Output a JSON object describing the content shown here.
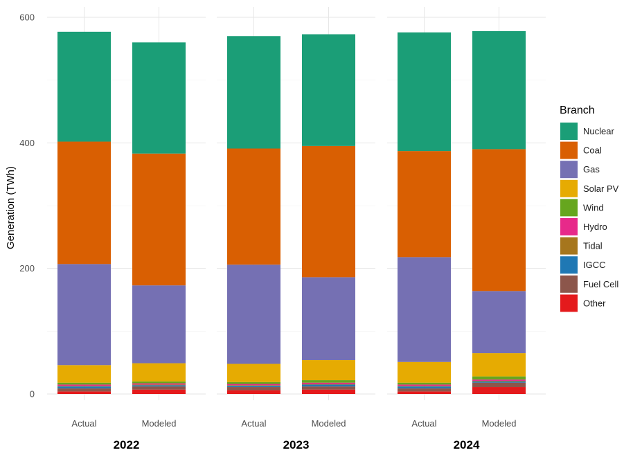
{
  "chart_data": {
    "type": "bar",
    "stacked": true,
    "ylabel": "Generation (TWh)",
    "ylim": [
      0,
      610
    ],
    "yticks": [
      0,
      200,
      400,
      600
    ],
    "grid": true,
    "legend_placement": "right",
    "legend_title": "Branch",
    "facets": [
      "2022",
      "2023",
      "2024"
    ],
    "categories": [
      "Actual",
      "Modeled"
    ],
    "series": [
      {
        "name": "Other",
        "color": "#E41A1C",
        "values": {
          "2022": [
            4,
            7
          ],
          "2023": [
            6,
            7
          ],
          "2024": [
            4,
            11
          ]
        }
      },
      {
        "name": "Fuel Cell",
        "color": "#8C564B",
        "values": {
          "2022": [
            5,
            5
          ],
          "2023": [
            5,
            5
          ],
          "2024": [
            5,
            7
          ]
        }
      },
      {
        "name": "IGCC",
        "color": "#1F78B4",
        "values": {
          "2022": [
            3,
            2
          ],
          "2023": [
            2,
            3
          ],
          "2024": [
            3,
            2
          ]
        }
      },
      {
        "name": "Tidal",
        "color": "#A6761D",
        "values": {
          "2022": [
            1,
            1
          ],
          "2023": [
            1,
            1
          ],
          "2024": [
            1,
            1
          ]
        }
      },
      {
        "name": "Hydro",
        "color": "#E7298A",
        "values": {
          "2022": [
            2,
            2
          ],
          "2023": [
            2,
            2
          ],
          "2024": [
            2,
            2
          ]
        }
      },
      {
        "name": "Wind",
        "color": "#66A61E",
        "values": {
          "2022": [
            3,
            3
          ],
          "2023": [
            3,
            4
          ],
          "2024": [
            3,
            5
          ]
        }
      },
      {
        "name": "Solar PV",
        "color": "#E6AB02",
        "values": {
          "2022": [
            28,
            29
          ],
          "2023": [
            29,
            32
          ],
          "2024": [
            33,
            37
          ]
        }
      },
      {
        "name": "Gas",
        "color": "#7570B3",
        "values": {
          "2022": [
            161,
            124
          ],
          "2023": [
            158,
            132
          ],
          "2024": [
            167,
            99
          ]
        }
      },
      {
        "name": "Coal",
        "color": "#D95F02",
        "values": {
          "2022": [
            195,
            210
          ],
          "2023": [
            185,
            209
          ],
          "2024": [
            169,
            226
          ]
        }
      },
      {
        "name": "Nuclear",
        "color": "#1B9E77",
        "values": {
          "2022": [
            175,
            177
          ],
          "2023": [
            179,
            178
          ],
          "2024": [
            189,
            188
          ]
        }
      }
    ],
    "stack_order_bottom_to_top": [
      "Other",
      "Fuel Cell",
      "IGCC",
      "Tidal",
      "Hydro",
      "Wind",
      "Solar PV",
      "Gas",
      "Coal",
      "Nuclear"
    ],
    "legend_order": [
      "Nuclear",
      "Coal",
      "Gas",
      "Solar PV",
      "Wind",
      "Hydro",
      "Tidal",
      "IGCC",
      "Fuel Cell",
      "Other"
    ]
  }
}
